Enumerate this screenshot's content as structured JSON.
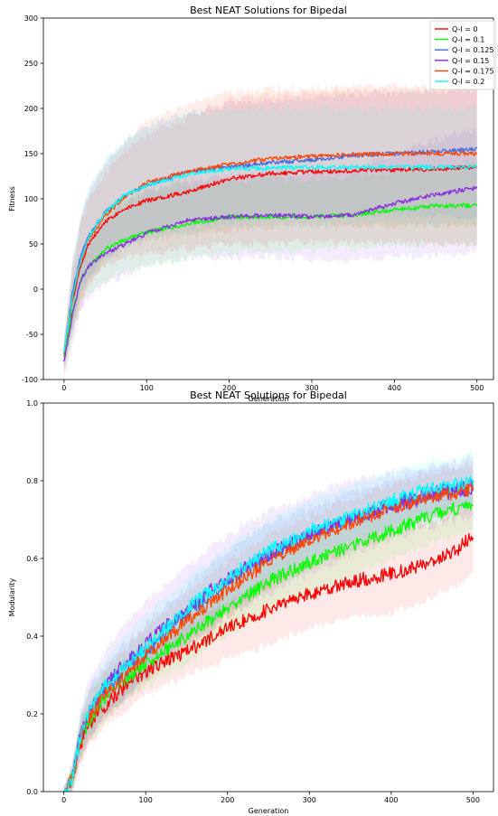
{
  "chart_data": [
    {
      "type": "line",
      "title": "Best NEAT Solutions for Bipedal",
      "xlabel": "Generation",
      "ylabel": "Fitness",
      "xlim": [
        -25,
        520
      ],
      "ylim": [
        -100,
        300
      ],
      "xticks": [
        0,
        100,
        200,
        300,
        400,
        500
      ],
      "yticks": [
        -100,
        -50,
        0,
        50,
        100,
        150,
        200,
        250,
        300
      ],
      "grid": false,
      "legend": "top-right",
      "shaded_bands": true,
      "series": [
        {
          "name": "Q-I = 0",
          "color": "#ff0000",
          "x": [
            0,
            10,
            20,
            30,
            50,
            75,
            100,
            150,
            200,
            250,
            300,
            350,
            400,
            450,
            500
          ],
          "y": [
            -75,
            -15,
            25,
            50,
            75,
            90,
            98,
            108,
            122,
            128,
            130,
            131,
            132,
            133,
            135
          ],
          "lower": [
            -90,
            -50,
            -20,
            5,
            25,
            35,
            40,
            45,
            50,
            50,
            52,
            52,
            52,
            50,
            50
          ],
          "upper": [
            -60,
            20,
            70,
            100,
            130,
            155,
            170,
            190,
            210,
            215,
            218,
            220,
            220,
            220,
            220
          ]
        },
        {
          "name": "Q-I = 0.1",
          "color": "#00ff00",
          "x": [
            0,
            10,
            20,
            30,
            50,
            75,
            100,
            150,
            200,
            250,
            300,
            350,
            400,
            450,
            500
          ],
          "y": [
            -75,
            -25,
            10,
            25,
            45,
            55,
            63,
            72,
            80,
            80,
            80,
            82,
            88,
            92,
            93
          ],
          "lower": [
            -90,
            -50,
            -15,
            -5,
            10,
            20,
            25,
            35,
            40,
            42,
            42,
            45,
            48,
            50,
            50
          ],
          "upper": [
            -60,
            5,
            40,
            60,
            85,
            100,
            110,
            115,
            120,
            122,
            122,
            125,
            130,
            135,
            138
          ]
        },
        {
          "name": "Q-I = 0.125",
          "color": "#4169e1",
          "x": [
            0,
            10,
            20,
            30,
            50,
            75,
            100,
            150,
            200,
            250,
            300,
            350,
            400,
            450,
            500
          ],
          "y": [
            -70,
            -5,
            35,
            60,
            85,
            105,
            115,
            130,
            135,
            140,
            143,
            148,
            150,
            152,
            155
          ],
          "lower": [
            -85,
            -40,
            -5,
            15,
            35,
            50,
            60,
            70,
            75,
            78,
            80,
            82,
            82,
            80,
            80
          ],
          "upper": [
            -55,
            30,
            80,
            110,
            140,
            165,
            180,
            195,
            205,
            210,
            212,
            215,
            218,
            220,
            222
          ]
        },
        {
          "name": "Q-I = 0.15",
          "color": "#8a2be2",
          "x": [
            0,
            10,
            20,
            30,
            50,
            75,
            100,
            150,
            200,
            250,
            300,
            350,
            400,
            450,
            500
          ],
          "y": [
            -80,
            -30,
            10,
            25,
            40,
            50,
            62,
            76,
            80,
            82,
            80,
            82,
            95,
            105,
            112
          ],
          "lower": [
            -100,
            -60,
            -25,
            -10,
            5,
            15,
            25,
            35,
            35,
            35,
            32,
            32,
            35,
            38,
            40
          ],
          "upper": [
            -60,
            5,
            45,
            60,
            80,
            95,
            110,
            120,
            125,
            130,
            130,
            135,
            150,
            165,
            178
          ]
        },
        {
          "name": "Q-I = 0.175",
          "color": "#ff4500",
          "x": [
            0,
            10,
            20,
            30,
            50,
            75,
            100,
            150,
            200,
            250,
            300,
            350,
            400,
            450,
            500
          ],
          "y": [
            -72,
            -10,
            30,
            55,
            82,
            103,
            118,
            130,
            138,
            145,
            147,
            149,
            150,
            150,
            150
          ],
          "lower": [
            -88,
            -45,
            -10,
            10,
            30,
            45,
            55,
            60,
            65,
            68,
            70,
            70,
            70,
            70,
            70
          ],
          "upper": [
            -55,
            25,
            75,
            105,
            140,
            165,
            185,
            205,
            218,
            222,
            222,
            224,
            225,
            225,
            225
          ]
        },
        {
          "name": "Q-I = 0.2",
          "color": "#00ffff",
          "x": [
            0,
            10,
            20,
            30,
            50,
            75,
            100,
            150,
            200,
            250,
            300,
            350,
            400,
            450,
            500
          ],
          "y": [
            -70,
            -10,
            32,
            58,
            85,
            105,
            115,
            127,
            133,
            134,
            135,
            135,
            135,
            135,
            135
          ],
          "lower": [
            -85,
            -45,
            -8,
            12,
            30,
            45,
            55,
            62,
            68,
            70,
            70,
            72,
            72,
            72,
            72
          ],
          "upper": [
            -55,
            25,
            80,
            110,
            145,
            165,
            180,
            195,
            200,
            200,
            200,
            200,
            200,
            200,
            200
          ]
        }
      ]
    },
    {
      "type": "line",
      "title": "Best NEAT Solutions for Bipedal",
      "xlabel": "Generation",
      "ylabel": "Modularity",
      "xlim": [
        -25,
        525
      ],
      "ylim": [
        0.0,
        1.0
      ],
      "xticks": [
        0,
        100,
        200,
        300,
        400,
        500
      ],
      "yticks": [
        "0.0",
        "0.2",
        "0.4",
        "0.6",
        "0.8",
        "1.0"
      ],
      "grid": false,
      "legend": "none",
      "shaded_bands": true,
      "series": [
        {
          "color": "#ff0000",
          "x": [
            0,
            10,
            20,
            30,
            50,
            75,
            100,
            150,
            200,
            250,
            300,
            350,
            400,
            450,
            480,
            500
          ],
          "y": [
            0.0,
            0.03,
            0.12,
            0.17,
            0.22,
            0.27,
            0.31,
            0.36,
            0.42,
            0.47,
            0.51,
            0.54,
            0.56,
            0.59,
            0.62,
            0.66
          ],
          "lower": [
            0.0,
            0.0,
            0.07,
            0.12,
            0.17,
            0.21,
            0.25,
            0.3,
            0.34,
            0.38,
            0.42,
            0.45,
            0.46,
            0.5,
            0.53,
            0.56
          ],
          "upper": [
            0.01,
            0.06,
            0.17,
            0.22,
            0.27,
            0.32,
            0.37,
            0.43,
            0.49,
            0.55,
            0.59,
            0.63,
            0.66,
            0.69,
            0.71,
            0.73
          ]
        },
        {
          "color": "#00ff00",
          "x": [
            0,
            10,
            20,
            30,
            50,
            75,
            100,
            150,
            200,
            250,
            300,
            350,
            400,
            450,
            480,
            500
          ],
          "y": [
            0.0,
            0.03,
            0.13,
            0.18,
            0.24,
            0.29,
            0.33,
            0.4,
            0.47,
            0.54,
            0.59,
            0.63,
            0.67,
            0.71,
            0.73,
            0.74
          ],
          "lower": [
            0.0,
            0.0,
            0.08,
            0.13,
            0.18,
            0.23,
            0.27,
            0.33,
            0.4,
            0.46,
            0.51,
            0.55,
            0.6,
            0.64,
            0.66,
            0.67
          ],
          "upper": [
            0.01,
            0.06,
            0.18,
            0.23,
            0.3,
            0.35,
            0.4,
            0.47,
            0.54,
            0.61,
            0.66,
            0.7,
            0.74,
            0.77,
            0.79,
            0.8
          ]
        },
        {
          "color": "#4169e1",
          "x": [
            0,
            10,
            20,
            30,
            50,
            75,
            100,
            150,
            200,
            250,
            300,
            350,
            400,
            450,
            480,
            500
          ],
          "y": [
            0.0,
            0.03,
            0.14,
            0.2,
            0.26,
            0.31,
            0.36,
            0.46,
            0.54,
            0.61,
            0.66,
            0.7,
            0.74,
            0.77,
            0.78,
            0.79
          ],
          "lower": [
            0.0,
            0.0,
            0.09,
            0.14,
            0.2,
            0.24,
            0.29,
            0.39,
            0.46,
            0.53,
            0.59,
            0.63,
            0.67,
            0.71,
            0.72,
            0.73
          ],
          "upper": [
            0.01,
            0.06,
            0.19,
            0.26,
            0.32,
            0.38,
            0.43,
            0.53,
            0.62,
            0.69,
            0.73,
            0.77,
            0.8,
            0.83,
            0.84,
            0.85
          ]
        },
        {
          "color": "#8a2be2",
          "x": [
            0,
            10,
            20,
            30,
            50,
            75,
            100,
            150,
            200,
            250,
            300,
            350,
            400,
            450,
            480,
            500
          ],
          "y": [
            0.0,
            0.03,
            0.14,
            0.2,
            0.27,
            0.33,
            0.38,
            0.47,
            0.55,
            0.61,
            0.66,
            0.7,
            0.73,
            0.76,
            0.77,
            0.78
          ],
          "lower": [
            0.0,
            0.0,
            0.08,
            0.13,
            0.19,
            0.24,
            0.29,
            0.37,
            0.45,
            0.51,
            0.56,
            0.61,
            0.65,
            0.68,
            0.7,
            0.71
          ],
          "upper": [
            0.01,
            0.07,
            0.2,
            0.28,
            0.36,
            0.43,
            0.49,
            0.58,
            0.66,
            0.72,
            0.76,
            0.8,
            0.82,
            0.84,
            0.85,
            0.86
          ]
        },
        {
          "color": "#ff4500",
          "x": [
            0,
            10,
            20,
            30,
            50,
            75,
            100,
            150,
            200,
            250,
            300,
            350,
            400,
            450,
            480,
            500
          ],
          "y": [
            0.0,
            0.03,
            0.13,
            0.19,
            0.25,
            0.3,
            0.35,
            0.44,
            0.52,
            0.59,
            0.65,
            0.69,
            0.73,
            0.76,
            0.77,
            0.78
          ],
          "lower": [
            0.0,
            0.0,
            0.08,
            0.13,
            0.19,
            0.24,
            0.28,
            0.37,
            0.45,
            0.52,
            0.58,
            0.62,
            0.66,
            0.7,
            0.71,
            0.72
          ],
          "upper": [
            0.01,
            0.06,
            0.18,
            0.25,
            0.31,
            0.37,
            0.42,
            0.51,
            0.59,
            0.66,
            0.71,
            0.75,
            0.79,
            0.82,
            0.83,
            0.84
          ]
        },
        {
          "color": "#00ffff",
          "x": [
            0,
            10,
            20,
            30,
            50,
            75,
            100,
            150,
            200,
            250,
            300,
            350,
            400,
            450,
            480,
            500
          ],
          "y": [
            0.0,
            0.03,
            0.14,
            0.2,
            0.27,
            0.32,
            0.37,
            0.47,
            0.55,
            0.62,
            0.67,
            0.71,
            0.75,
            0.78,
            0.79,
            0.8
          ],
          "lower": [
            0.0,
            0.0,
            0.09,
            0.14,
            0.2,
            0.25,
            0.3,
            0.4,
            0.47,
            0.54,
            0.6,
            0.64,
            0.68,
            0.71,
            0.73,
            0.74
          ],
          "upper": [
            0.01,
            0.07,
            0.2,
            0.27,
            0.34,
            0.4,
            0.45,
            0.55,
            0.63,
            0.7,
            0.75,
            0.79,
            0.82,
            0.85,
            0.86,
            0.87
          ]
        }
      ]
    }
  ]
}
